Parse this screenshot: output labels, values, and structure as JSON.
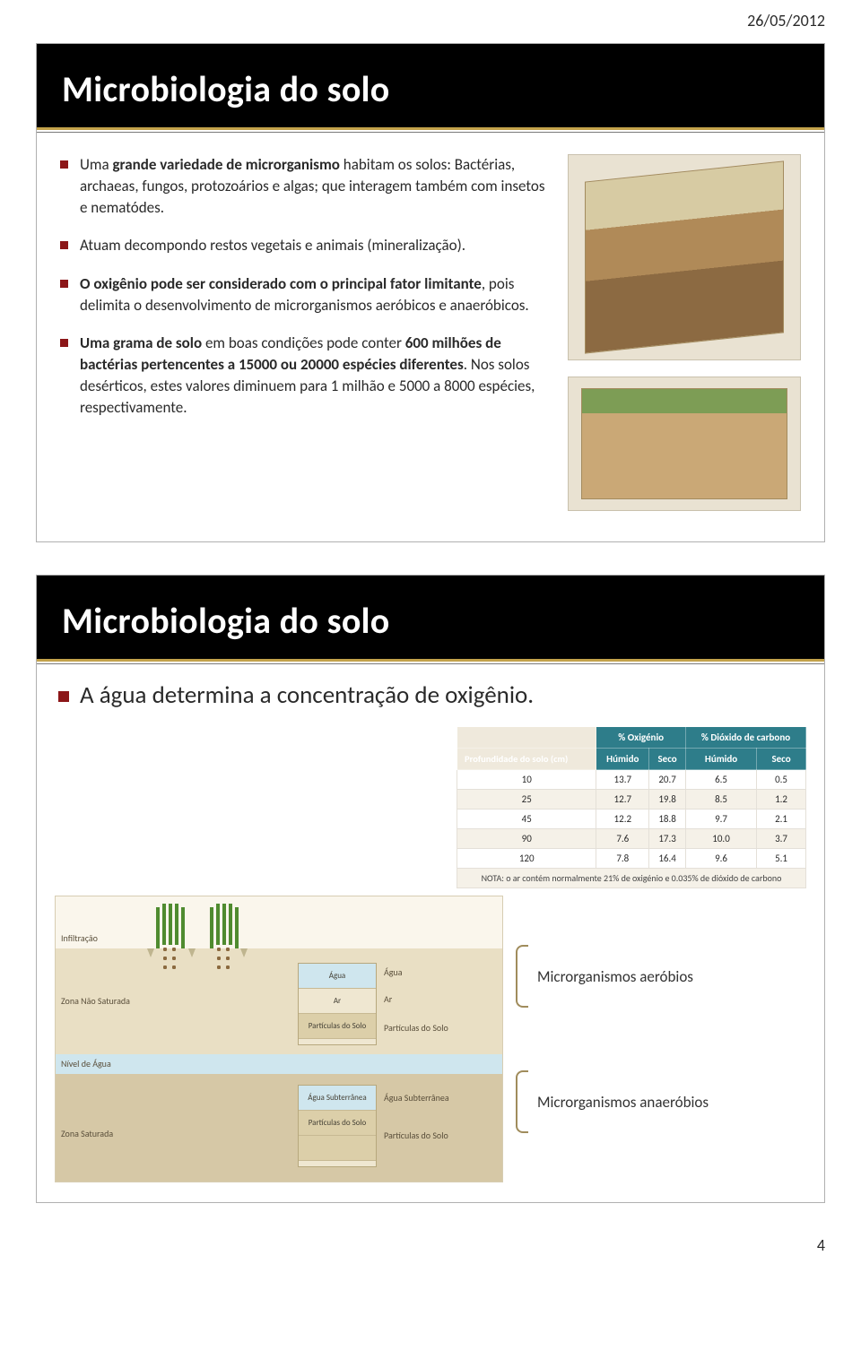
{
  "header": {
    "date": "26/05/2012",
    "page_number": "4"
  },
  "colors": {
    "bullet": "#8c1618",
    "title_rule": "#c3a24a",
    "table_header": "#2e7d8a",
    "bg_cream": "#f4eedd"
  },
  "slide1": {
    "title": "Microbiologia do solo",
    "bullets": [
      "Uma <b>grande variedade de microrganismo</b> habitam os solos: Bactérias, archaeas, fungos, protozoários e algas; que interagem também com insetos e nematódes.",
      "Atuam decompondo restos vegetais e animais (mineralização).",
      "<b>O oxigênio pode ser considerado com o principal fator limitante</b>, pois delimita o desenvolvimento de microrganismos aeróbicos e anaeróbicos.",
      "<b>Uma grama de solo</b> em boas condições pode conter <b>600 milhões de bactérias pertencentes a 15000 ou 20000 espécies diferentes</b>. Nos solos desérticos, estes valores diminuem para 1 milhão e 5000 a 8000 espécies, respectivamente."
    ],
    "images": [
      "Ilustração de bloco de solo com organismos",
      "Corte de solo mostrando camadas e raízes"
    ]
  },
  "slide2": {
    "title": "Microbiologia do solo",
    "lead": "A água determina a concentração de oxigênio.",
    "table": {
      "col_group_1": "% Oxigénio",
      "col_group_2": "% Dióxido de carbono",
      "row_header": "Profundidade do solo (cm)",
      "sub_headers": [
        "Húmido",
        "Seco",
        "Húmido",
        "Seco"
      ],
      "rows": [
        [
          "10",
          "13.7",
          "20.7",
          "6.5",
          "0.5"
        ],
        [
          "25",
          "12.7",
          "19.8",
          "8.5",
          "1.2"
        ],
        [
          "45",
          "12.2",
          "18.8",
          "9.7",
          "2.1"
        ],
        [
          "90",
          "7.6",
          "17.3",
          "10.0",
          "3.7"
        ],
        [
          "120",
          "7.8",
          "16.4",
          "9.6",
          "5.1"
        ]
      ],
      "note": "NOTA: o ar contém normalmente 21% de oxigénio e 0.035% de dióxido de carbono"
    },
    "diagram_labels": {
      "infiltr": "Infiltração",
      "zona_nao_sat": "Zona Não Saturada",
      "nivel_agua": "Nível de Água",
      "zona_sat": "Zona Saturada",
      "agua": "Água",
      "ar": "Ar",
      "particulas": "Partículas do Solo",
      "agua_subt": "Água Subterrânea"
    },
    "annotations": {
      "aerobios": "Microrganismos aeróbios",
      "anaerobios": "Microrganismos anaeróbios"
    }
  }
}
